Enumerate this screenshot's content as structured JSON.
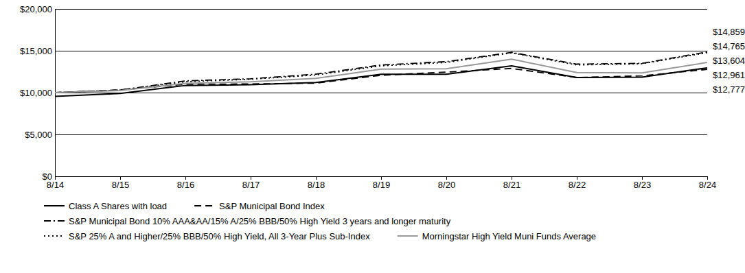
{
  "chart_data": {
    "type": "line",
    "categories": [
      "8/14",
      "8/15",
      "8/16",
      "8/17",
      "8/18",
      "8/19",
      "8/20",
      "8/21",
      "8/22",
      "8/23",
      "8/24"
    ],
    "ylim": [
      0,
      20000
    ],
    "yticks": [
      {
        "value": 0,
        "label": "$0"
      },
      {
        "value": 5000,
        "label": "$5,000"
      },
      {
        "value": 10000,
        "label": "$10,000"
      },
      {
        "value": 15000,
        "label": "$15,000"
      },
      {
        "value": 20000,
        "label": "$20,000"
      }
    ],
    "grid": true,
    "legend": "bottom",
    "data_labels": true,
    "series": [
      {
        "name": "Class A Shares with load",
        "color": "#000000",
        "line_style": "solid",
        "values": [
          9550,
          9900,
          10850,
          10950,
          11200,
          12200,
          12200,
          13200,
          11800,
          11850,
          12961
        ],
        "value_labels": [
          null,
          null,
          null,
          null,
          null,
          null,
          null,
          null,
          null,
          null,
          "$12,961"
        ]
      },
      {
        "name": "S&P Municipal Bond Index",
        "color": "#000000",
        "line_style": "dashed",
        "values": [
          10000,
          10330,
          11000,
          11030,
          11130,
          12070,
          12450,
          12890,
          11800,
          12000,
          12777
        ],
        "value_labels": [
          null,
          null,
          null,
          null,
          null,
          null,
          null,
          null,
          null,
          null,
          "$12,777"
        ]
      },
      {
        "name": "S&P Municipal Bond 10% AAA&AA/15% A/25% BBB/50% High Yield 3 years and longer maturity",
        "color": "#000000",
        "line_style": "dashdot",
        "values": [
          10000,
          10300,
          11400,
          11650,
          12200,
          13300,
          13700,
          14800,
          13400,
          13500,
          14859
        ],
        "value_labels": [
          null,
          null,
          null,
          null,
          null,
          null,
          null,
          null,
          null,
          null,
          "$14,859"
        ]
      },
      {
        "name": "S&P 25% A and Higher/25% BBB/50% High Yield, All 3-Year Plus Sub-Index",
        "color": "#000000",
        "line_style": "dotted",
        "values": [
          10000,
          10300,
          11300,
          11600,
          12100,
          13200,
          13600,
          14750,
          13300,
          13450,
          14765
        ],
        "value_labels": [
          null,
          null,
          null,
          null,
          null,
          null,
          null,
          null,
          null,
          null,
          "$14,765"
        ]
      },
      {
        "name": "Morningstar High Yield Muni Funds Average",
        "color": "#999999",
        "line_style": "solid",
        "values": [
          10000,
          10250,
          11100,
          11300,
          11700,
          12800,
          12850,
          14000,
          12400,
          12350,
          13604
        ],
        "value_labels": [
          null,
          null,
          null,
          null,
          null,
          null,
          null,
          null,
          null,
          null,
          "$13,604"
        ]
      }
    ]
  }
}
